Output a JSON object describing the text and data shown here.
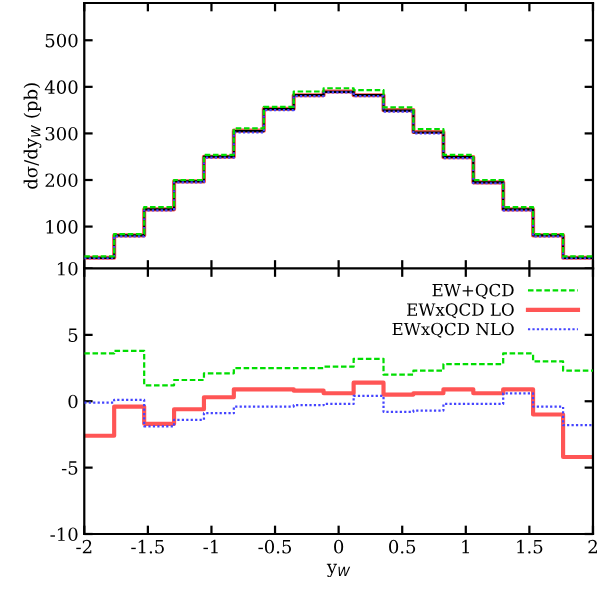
{
  "chart_data": [
    {
      "type": "step",
      "ylabel": "dσ/dy$_{W}$ (pb)",
      "x": [
        -2,
        -1.765,
        -1.529,
        -1.294,
        -1.059,
        -0.824,
        -0.588,
        -0.353,
        -0.118,
        0.118,
        0.353,
        0.588,
        0.824,
        1.059,
        1.294,
        1.529,
        1.765,
        2
      ],
      "xlim": [
        -2,
        2
      ],
      "xticks": [
        -2,
        -1.5,
        -1,
        -0.5,
        0,
        0.5,
        1,
        1.5,
        2
      ],
      "ylim": [
        10,
        580
      ],
      "yticks": [
        10,
        100,
        200,
        300,
        400,
        500
      ],
      "tick_labels": "y",
      "grid": false,
      "legend": false,
      "series": [
        {
          "color": "#00dd00",
          "line_style": "dashed",
          "values": [
            36,
            84,
            142,
            200,
            254,
            311,
            357,
            390,
            397,
            393,
            356,
            309,
            254,
            200,
            142,
            84,
            36,
            36
          ]
        },
        {
          "color": "#ff5555",
          "line_style": "solid",
          "values": [
            33,
            81,
            137,
            197,
            250,
            306,
            353,
            382,
            390,
            382,
            350,
            303,
            249,
            195,
            137,
            81,
            33,
            33
          ]
        },
        {
          "color": "#4444ff",
          "line_style": "dotted",
          "values": [
            32,
            79,
            135,
            195,
            248,
            302,
            350,
            380,
            388,
            380,
            347,
            300,
            247,
            193,
            135,
            79,
            32,
            32
          ]
        },
        {
          "color": "#000000",
          "line_style": "solid",
          "values": [
            33,
            81,
            137,
            197,
            250,
            305,
            352,
            382,
            389,
            382,
            349,
            302,
            249,
            195,
            137,
            81,
            33,
            33
          ]
        }
      ]
    },
    {
      "type": "step",
      "xlabel": "y$_{W}$",
      "x": [
        -2,
        -1.765,
        -1.529,
        -1.294,
        -1.059,
        -0.824,
        -0.588,
        -0.353,
        -0.118,
        0.118,
        0.353,
        0.588,
        0.824,
        1.059,
        1.294,
        1.529,
        1.765,
        2
      ],
      "xlim": [
        -2,
        2
      ],
      "xticks": [
        -2,
        -1.5,
        -1,
        -0.5,
        0,
        0.5,
        1,
        1.5,
        2
      ],
      "ylim": [
        -10,
        10
      ],
      "yticks": [
        -10,
        -5,
        0,
        5
      ],
      "grid": false,
      "legend": "top right",
      "series": [
        {
          "name": "EW+QCD",
          "color": "#00dd00",
          "line_style": "dashed",
          "values": [
            3.6,
            3.8,
            1.2,
            1.6,
            2.1,
            2.5,
            2.5,
            2.5,
            2.6,
            3.2,
            2.0,
            2.3,
            2.8,
            2.8,
            3.6,
            3.0,
            2.3,
            2.3
          ]
        },
        {
          "name": "EWxQCD LO",
          "color": "#ff5555",
          "line_style": "solid",
          "values": [
            -2.6,
            -0.4,
            -1.7,
            -0.6,
            0.3,
            0.9,
            0.9,
            0.8,
            0.6,
            1.4,
            0.5,
            0.6,
            0.9,
            0.6,
            0.9,
            -1.0,
            -4.2,
            -4.2
          ]
        },
        {
          "name": "EWxQCD NLO",
          "color": "#4444ff",
          "line_style": "dotted",
          "values": [
            -0.1,
            0.1,
            -1.9,
            -1.4,
            -0.9,
            -0.4,
            -0.4,
            -0.3,
            -0.2,
            0.4,
            -0.8,
            -0.7,
            -0.2,
            -0.2,
            0.6,
            -0.4,
            -1.8,
            -1.8
          ]
        }
      ]
    }
  ]
}
